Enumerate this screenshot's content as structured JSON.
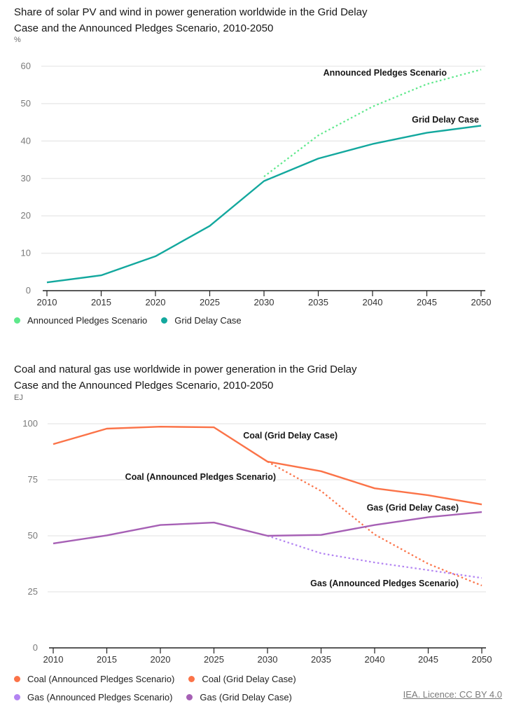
{
  "chart_data": [
    {
      "type": "line",
      "title": "Share of solar PV and wind in power generation worldwide in the Grid Delay Case and the Announced Pledges Scenario, 2010-2050",
      "title_lines": [
        "Share of solar PV and wind in power generation worldwide in the Grid Delay",
        "Case and the Announced Pledges Scenario, 2010-2050"
      ],
      "ylabel": "%",
      "xlabel": "",
      "x": [
        2010,
        2015,
        2020,
        2025,
        2030,
        2035,
        2040,
        2045,
        2050
      ],
      "xticks": [
        "2010",
        "2015",
        "2020",
        "2025",
        "2030",
        "2035",
        "2040",
        "2045",
        "2050"
      ],
      "yticks": [
        "0",
        "10",
        "20",
        "30",
        "40",
        "50",
        "60"
      ],
      "ylim": [
        0,
        60
      ],
      "grid": true,
      "legend_position": "bottom-left",
      "series": [
        {
          "name": "Announced Pledges Scenario",
          "color": "#5ee88b",
          "dashed": true,
          "x": [
            2030,
            2035,
            2040,
            2045,
            2050
          ],
          "values": [
            30.5,
            41.5,
            49.2,
            55.2,
            59.1
          ],
          "label": "Announced Pledges Scenario"
        },
        {
          "name": "Grid Delay Case",
          "color": "#13a89e",
          "dashed": false,
          "x": [
            2010,
            2015,
            2020,
            2025,
            2030,
            2035,
            2040,
            2045,
            2050
          ],
          "values": [
            2.2,
            4.1,
            9.2,
            17.3,
            29.3,
            35.3,
            39.2,
            42.2,
            44.1
          ],
          "label": "Grid Delay Case"
        }
      ]
    },
    {
      "type": "line",
      "title": "Coal and natural gas use worldwide in power generation in the Grid Delay Case and the Announced Pledges Scenario, 2010-2050",
      "title_lines": [
        "Coal and natural gas use worldwide in power generation in the Grid Delay",
        "Case and the Announced Pledges Scenario, 2010-2050"
      ],
      "ylabel": "EJ",
      "xlabel": "",
      "x": [
        2010,
        2015,
        2020,
        2025,
        2030,
        2035,
        2040,
        2045,
        2050
      ],
      "xticks": [
        "2010",
        "2015",
        "2020",
        "2025",
        "2030",
        "2035",
        "2040",
        "2045",
        "2050"
      ],
      "yticks": [
        "0",
        "25",
        "50",
        "75",
        "100"
      ],
      "ylim": [
        0,
        100
      ],
      "grid": true,
      "legend_position": "bottom-left",
      "series": [
        {
          "name": "Coal (Announced Pledges Scenario)",
          "color": "#fb7348",
          "dashed": true,
          "x": [
            2030,
            2035,
            2040,
            2045,
            2050
          ],
          "values": [
            83.1,
            70.0,
            50.6,
            37.5,
            27.8
          ],
          "label": "Coal (Announced Pledges Scenario)"
        },
        {
          "name": "Coal (Grid Delay Case)",
          "color": "#fb7348",
          "dashed": false,
          "x": [
            2010,
            2015,
            2020,
            2025,
            2030,
            2035,
            2040,
            2045,
            2050
          ],
          "values": [
            90.9,
            97.8,
            98.7,
            98.4,
            83.1,
            78.8,
            71.2,
            68.1,
            64.0
          ],
          "label": "Coal (Grid Delay Case)"
        },
        {
          "name": "Gas (Announced Pledges Scenario)",
          "color": "#b384f2",
          "dashed": true,
          "x": [
            2030,
            2035,
            2040,
            2045,
            2050
          ],
          "values": [
            50.0,
            42.2,
            38.1,
            34.7,
            31.2
          ],
          "label": "Gas (Announced Pledges Scenario)"
        },
        {
          "name": "Gas (Grid Delay Case)",
          "color": "#a660b5",
          "dashed": false,
          "x": [
            2010,
            2015,
            2020,
            2025,
            2030,
            2035,
            2040,
            2045,
            2050
          ],
          "values": [
            46.6,
            50.2,
            54.8,
            55.9,
            50.0,
            50.4,
            54.8,
            58.3,
            60.6
          ],
          "label": "Gas (Grid Delay Case)"
        }
      ]
    }
  ],
  "credit": "IEA. Licence: CC BY 4.0"
}
